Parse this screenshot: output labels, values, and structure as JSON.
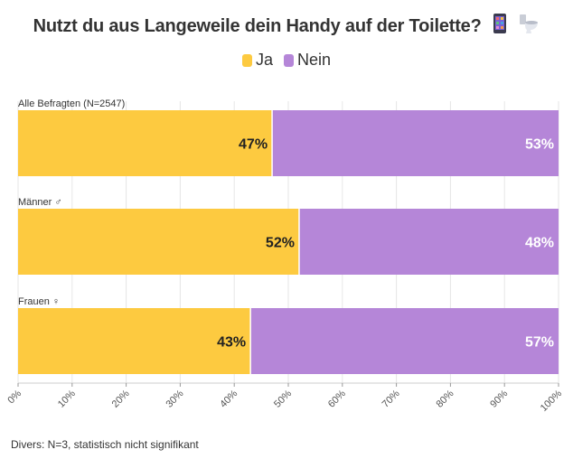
{
  "title": "Nutzt du aus Langeweile dein Handy auf der Toilette?",
  "title_icons": [
    "mobile-phone-icon",
    "toilet-icon"
  ],
  "legend": [
    {
      "label": "Ja",
      "color": "#fdca40"
    },
    {
      "label": "Nein",
      "color": "#b586d8"
    }
  ],
  "footnote": "Divers: N=3, statistisch nicht signifikant",
  "chart_data": {
    "type": "bar",
    "orientation": "horizontal",
    "stacked": true,
    "categories": [
      "Alle Befragten (N=2547)",
      "Männer ♂",
      "Frauen ♀"
    ],
    "series": [
      {
        "name": "Ja",
        "values": [
          47,
          52,
          43
        ],
        "labels": [
          "47%",
          "52%",
          "43%"
        ],
        "color": "#fdca40"
      },
      {
        "name": "Nein",
        "values": [
          53,
          48,
          57
        ],
        "labels": [
          "53%",
          "48%",
          "57%"
        ],
        "color": "#b586d8"
      }
    ],
    "xlim": [
      0,
      100
    ],
    "x_ticks": [
      "0%",
      "10%",
      "20%",
      "30%",
      "40%",
      "50%",
      "60%",
      "70%",
      "80%",
      "90%",
      "100%"
    ],
    "grid": true,
    "legend_position": "top-center"
  }
}
